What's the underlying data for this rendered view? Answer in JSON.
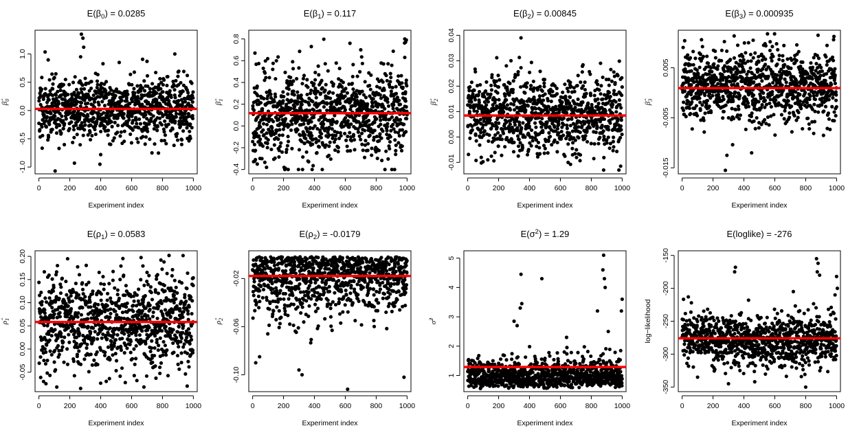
{
  "chart_data": [
    {
      "type": "scatter",
      "title_main": "E(β",
      "title_sub": "0",
      "title_tail": ") = 0.0285",
      "ylabel": "β̂",
      "ylabel_sub": "0",
      "xlabel": "Experiment index",
      "xticks": [
        0,
        200,
        400,
        600,
        800,
        1000
      ],
      "xticklabels": [
        "0",
        "200",
        "400",
        "600",
        "800",
        "1000"
      ],
      "xlim": [
        -25,
        1025
      ],
      "yticks": [
        -1.0,
        -0.5,
        0.0,
        0.5,
        1.0
      ],
      "yticklabels": [
        "-1.0",
        "-0.5",
        "0.0",
        "0.5",
        "1.0"
      ],
      "ylim": [
        -1.12,
        1.42
      ],
      "mean": 0.0285,
      "gen": {
        "center": 0.04,
        "spread": 0.28,
        "n": 1000,
        "seed": 11,
        "skew": 0
      },
      "outliers": [
        [
          275,
          1.35
        ],
        [
          285,
          1.28
        ],
        [
          290,
          1.12
        ],
        [
          270,
          0.95
        ],
        [
          880,
          1.0
        ],
        [
          105,
          -1.07
        ],
        [
          230,
          -0.93
        ],
        [
          395,
          -0.95
        ],
        [
          400,
          -0.78
        ],
        [
          700,
          0.87
        ],
        [
          520,
          0.85
        ]
      ]
    },
    {
      "type": "scatter",
      "title_main": "E(β",
      "title_sub": "1",
      "title_tail": ") = 0.117",
      "ylabel": "β̂",
      "ylabel_sub": "1",
      "xlabel": "Experiment index",
      "xticks": [
        0,
        200,
        400,
        600,
        800,
        1000
      ],
      "xticklabels": [
        "0",
        "200",
        "400",
        "600",
        "800",
        "1000"
      ],
      "xlim": [
        -25,
        1025
      ],
      "yticks": [
        -0.4,
        -0.2,
        0.0,
        0.2,
        0.4,
        0.6,
        0.8
      ],
      "yticklabels": [
        "-0.4",
        "-0.2",
        "0.0",
        "0.2",
        "0.4",
        "0.6",
        "0.8"
      ],
      "ylim": [
        -0.44,
        0.88
      ],
      "mean": 0.117,
      "gen": {
        "center": 0.115,
        "spread": 0.2,
        "n": 1000,
        "seed": 23,
        "skew": 0
      },
      "outliers": [
        [
          985,
          0.8
        ],
        [
          995,
          0.79
        ],
        [
          990,
          0.77
        ],
        [
          15,
          0.67
        ],
        [
          380,
          0.73
        ],
        [
          630,
          0.76
        ],
        [
          700,
          0.7
        ],
        [
          230,
          -0.4
        ],
        [
          30,
          -0.35
        ],
        [
          90,
          -0.38
        ]
      ]
    },
    {
      "type": "scatter",
      "title_main": "E(β",
      "title_sub": "2",
      "title_tail": ") = 0.00845",
      "ylabel": "β̂",
      "ylabel_sub": "2",
      "xlabel": "Experiment index",
      "xticks": [
        0,
        200,
        400,
        600,
        800,
        1000
      ],
      "xticklabels": [
        "0",
        "200",
        "400",
        "600",
        "800",
        "1000"
      ],
      "xlim": [
        -25,
        1025
      ],
      "yticks": [
        -0.01,
        0.0,
        0.01,
        0.02,
        0.03,
        0.04
      ],
      "yticklabels": [
        "-0.01",
        "0.00",
        "0.01",
        "0.02",
        "0.03",
        "0.04"
      ],
      "ylim": [
        -0.0145,
        0.042
      ],
      "mean": 0.00845,
      "gen": {
        "center": 0.0085,
        "spread": 0.0075,
        "n": 1000,
        "seed": 37,
        "skew": 0
      },
      "outliers": [
        [
          345,
          0.039
        ],
        [
          280,
          0.03
        ],
        [
          250,
          0.028
        ],
        [
          860,
          0.029
        ],
        [
          880,
          -0.013
        ],
        [
          650,
          -0.01
        ],
        [
          130,
          -0.009
        ]
      ]
    },
    {
      "type": "scatter",
      "title_main": "E(β",
      "title_sub": "3",
      "title_tail": ") = 0.000935",
      "ylabel": "β̂",
      "ylabel_sub": "3",
      "xlabel": "Experiment index",
      "xticks": [
        0,
        200,
        400,
        600,
        800,
        1000
      ],
      "xticklabels": [
        "0",
        "200",
        "400",
        "600",
        "800",
        "1000"
      ],
      "xlim": [
        -25,
        1025
      ],
      "yticks": [
        -0.015,
        -0.005,
        0.005
      ],
      "yticklabels": [
        "-0.015",
        "-0.005",
        "0.005"
      ],
      "ylim": [
        -0.0162,
        0.0125
      ],
      "mean": 0.000935,
      "gen": {
        "center": 0.0012,
        "spread": 0.0036,
        "n": 1000,
        "seed": 41,
        "skew": 0
      },
      "outliers": [
        [
          280,
          -0.0155
        ],
        [
          290,
          -0.0125
        ],
        [
          450,
          -0.012
        ],
        [
          880,
          0.0115
        ],
        [
          460,
          0.0105
        ],
        [
          430,
          0.01
        ],
        [
          570,
          0.0102
        ],
        [
          360,
          0.0095
        ]
      ]
    },
    {
      "type": "scatter",
      "title_main": "E(ρ",
      "title_sub": "1",
      "title_tail": ") = 0.0583",
      "ylabel": "ρ̂",
      "ylabel_sub": "1",
      "xlabel": "Experiment index",
      "xticks": [
        0,
        200,
        400,
        600,
        800,
        1000
      ],
      "xticklabels": [
        "0",
        "200",
        "400",
        "600",
        "800",
        "1000"
      ],
      "xlim": [
        -25,
        1025
      ],
      "yticks": [
        -0.05,
        0.0,
        0.05,
        0.1,
        0.15,
        0.2
      ],
      "yticklabels": [
        "-0.05",
        "0.00",
        "0.05",
        "0.10",
        "0.15",
        "0.20"
      ],
      "ylim": [
        -0.092,
        0.212
      ],
      "mean": 0.0583,
      "gen": {
        "center": 0.058,
        "spread": 0.05,
        "n": 1000,
        "seed": 53,
        "skew": 0
      },
      "outliers": [
        [
          790,
          0.192
        ],
        [
          810,
          0.188
        ],
        [
          120,
          0.18
        ],
        [
          30,
          -0.07
        ],
        [
          270,
          -0.085
        ],
        [
          680,
          -0.082
        ],
        [
          960,
          -0.08
        ]
      ]
    },
    {
      "type": "scatter",
      "title_main": "E(ρ",
      "title_sub": "2",
      "title_tail": ") = -0.0179",
      "ylabel": "ρ̂",
      "ylabel_sub": "2",
      "xlabel": "Experiment index",
      "xticks": [
        0,
        200,
        400,
        600,
        800,
        1000
      ],
      "xticklabels": [
        "0",
        "200",
        "400",
        "600",
        "800",
        "1000"
      ],
      "xlim": [
        -25,
        1025
      ],
      "yticks": [
        -0.1,
        -0.06,
        -0.02
      ],
      "yticklabels": [
        "-0.10",
        "-0.06",
        "-0.02"
      ],
      "ylim": [
        -0.114,
        0.003
      ],
      "mean": -0.0179,
      "gen": {
        "center": -0.002,
        "spread": 0.022,
        "n": 1000,
        "seed": 67,
        "skew": -1,
        "cap": -0.002
      },
      "outliers": [
        [
          615,
          -0.112
        ],
        [
          300,
          -0.096
        ],
        [
          320,
          -0.1
        ],
        [
          980,
          -0.102
        ],
        [
          20,
          -0.09
        ],
        [
          45,
          -0.085
        ]
      ]
    },
    {
      "type": "scatter",
      "title_main": "E(σ",
      "title_sup": "2",
      "title_tail": ") = 1.29",
      "ylabel": "σ̂",
      "ylabel_sup": "2",
      "xlabel": "Experiment index",
      "xticks": [
        0,
        200,
        400,
        600,
        800,
        1000
      ],
      "xticklabels": [
        "0",
        "200",
        "400",
        "600",
        "800",
        "1000"
      ],
      "xlim": [
        -25,
        1025
      ],
      "yticks": [
        1,
        2,
        3,
        4,
        5
      ],
      "yticklabels": [
        "1",
        "2",
        "3",
        "4",
        "5"
      ],
      "ylim": [
        0.45,
        5.25
      ],
      "mean": 1.29,
      "gen": {
        "center": 1.0,
        "spread": 0.3,
        "n": 1000,
        "seed": 79,
        "skew": 1,
        "floor": 0.55
      },
      "outliers": [
        [
          880,
          5.1
        ],
        [
          875,
          4.6
        ],
        [
          885,
          4.3
        ],
        [
          890,
          4.0
        ],
        [
          345,
          4.45
        ],
        [
          480,
          4.3
        ],
        [
          350,
          3.45
        ],
        [
          340,
          3.3
        ],
        [
          1000,
          3.6
        ],
        [
          995,
          3.2
        ],
        [
          300,
          2.85
        ],
        [
          320,
          2.7
        ],
        [
          840,
          3.2
        ],
        [
          910,
          2.5
        ],
        [
          640,
          2.3
        ]
      ]
    },
    {
      "type": "scatter",
      "title_main": "E(loglike) = -276",
      "title_tail": "",
      "ylabel": "log−likelihood",
      "xlabel": "Experiment index",
      "xticks": [
        0,
        200,
        400,
        600,
        800,
        1000
      ],
      "xticklabels": [
        "0",
        "200",
        "400",
        "600",
        "800",
        "1000"
      ],
      "xlim": [
        -25,
        1025
      ],
      "yticks": [
        -350,
        -300,
        -250,
        -200,
        -150
      ],
      "yticklabels": [
        "-350",
        "-300",
        "-250",
        "-200",
        "-150"
      ],
      "ylim": [
        -357,
        -143
      ],
      "mean": -276,
      "gen": {
        "center": -278,
        "spread": 20,
        "n": 1000,
        "seed": 97,
        "skew": 0
      },
      "outliers": [
        [
          870,
          -155
        ],
        [
          880,
          -162
        ],
        [
          875,
          -175
        ],
        [
          890,
          -180
        ],
        [
          345,
          -168
        ],
        [
          340,
          -175
        ],
        [
          1000,
          -182
        ],
        [
          1005,
          -200
        ],
        [
          990,
          -210
        ],
        [
          40,
          -213
        ],
        [
          60,
          -222
        ],
        [
          430,
          -218
        ],
        [
          720,
          -205
        ],
        [
          800,
          -350
        ],
        [
          470,
          -342
        ],
        [
          300,
          -345
        ],
        [
          100,
          -335
        ]
      ]
    }
  ]
}
